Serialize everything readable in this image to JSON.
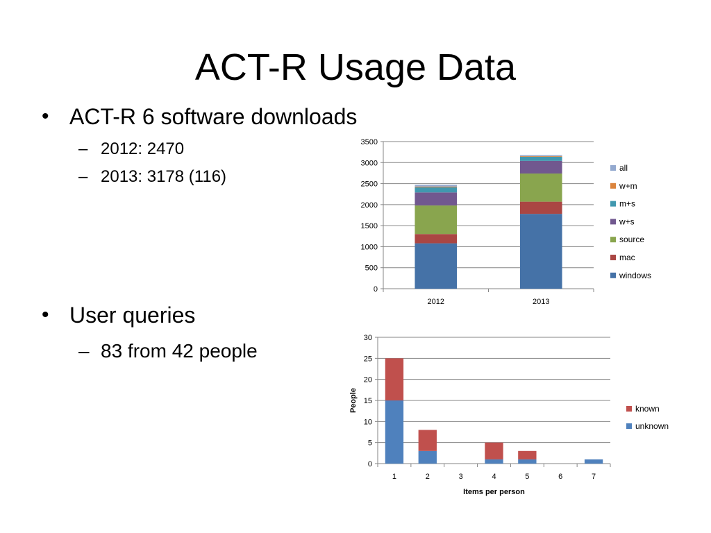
{
  "slide": {
    "title": "ACT-R Usage Data",
    "bullets": [
      {
        "text": "ACT-R 6 software downloads",
        "subs": [
          "2012: 2470",
          "2013: 3178 (116)"
        ]
      },
      {
        "text": "User queries",
        "subs": [
          "83 from 42 people"
        ]
      }
    ]
  },
  "chart_data": [
    {
      "type": "bar",
      "stacked": true,
      "categories": [
        "2012",
        "2013"
      ],
      "series": [
        {
          "name": "windows",
          "color": "#4572A7",
          "values": [
            1080,
            1780
          ]
        },
        {
          "name": "mac",
          "color": "#AA4643",
          "values": [
            220,
            290
          ]
        },
        {
          "name": "source",
          "color": "#89A54E",
          "values": [
            680,
            670
          ]
        },
        {
          "name": "w+s",
          "color": "#71588F",
          "values": [
            310,
            300
          ]
        },
        {
          "name": "m+s",
          "color": "#4198AF",
          "values": [
            120,
            100
          ]
        },
        {
          "name": "w+m",
          "color": "#DB843D",
          "values": [
            20,
            15
          ]
        },
        {
          "name": "all",
          "color": "#93A9CF",
          "values": [
            40,
            23
          ]
        }
      ],
      "xlabel": "",
      "ylabel": "",
      "ylim": [
        0,
        3500
      ],
      "yticks": [
        "0",
        "500",
        "1000",
        "1500",
        "2000",
        "2500",
        "3000",
        "3500"
      ],
      "grid": true,
      "legend": "right"
    },
    {
      "type": "bar",
      "stacked": true,
      "categories": [
        "1",
        "2",
        "3",
        "4",
        "5",
        "6",
        "7"
      ],
      "series": [
        {
          "name": "unknown",
          "color": "#4F81BD",
          "values": [
            15,
            3,
            0,
            1,
            1,
            0,
            1
          ]
        },
        {
          "name": "known",
          "color": "#C0504D",
          "values": [
            10,
            5,
            0,
            4,
            2,
            0,
            0
          ]
        }
      ],
      "xlabel": "Items per person",
      "ylabel": "People",
      "ylim": [
        0,
        30
      ],
      "yticks": [
        "0",
        "5",
        "10",
        "15",
        "20",
        "25",
        "30"
      ],
      "grid": true,
      "legend": "right"
    }
  ]
}
